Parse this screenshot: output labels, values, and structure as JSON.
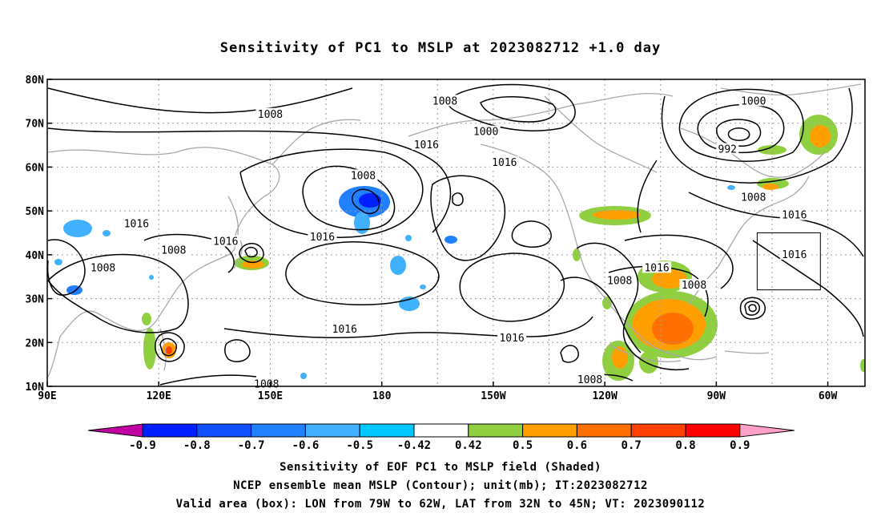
{
  "title": "Sensitivity of PC1 to MSLP at 2023082712 +1.0 day",
  "map": {
    "lat_ticks": [
      "80N",
      "70N",
      "60N",
      "50N",
      "40N",
      "30N",
      "20N",
      "10N"
    ],
    "lon_ticks": [
      "90E",
      "120E",
      "150E",
      "180",
      "150W",
      "120W",
      "90W",
      "60W"
    ],
    "lat_values": [
      80,
      70,
      60,
      50,
      40,
      30,
      20,
      10
    ],
    "lon_values": [
      90,
      120,
      150,
      180,
      210,
      240,
      270,
      300
    ],
    "grid": true,
    "valid_box": {
      "lon": [
        -79,
        -62
      ],
      "lat": [
        32,
        45
      ]
    },
    "contour_labels": [
      {
        "text": "1008",
        "lon": 150,
        "lat": 72
      },
      {
        "text": "1008",
        "lon": 197,
        "lat": 75
      },
      {
        "text": "1000",
        "lon": 208,
        "lat": 68
      },
      {
        "text": "1000",
        "lon": 280,
        "lat": 75
      },
      {
        "text": "992",
        "lon": 273,
        "lat": 64
      },
      {
        "text": "1016",
        "lon": 192,
        "lat": 65
      },
      {
        "text": "1016",
        "lon": 213,
        "lat": 61
      },
      {
        "text": "1008",
        "lon": 175,
        "lat": 58
      },
      {
        "text": "1008",
        "lon": 280,
        "lat": 53
      },
      {
        "text": "1016",
        "lon": 291,
        "lat": 49
      },
      {
        "text": "1016",
        "lon": 114,
        "lat": 47
      },
      {
        "text": "1016",
        "lon": 138,
        "lat": 43
      },
      {
        "text": "1016",
        "lon": 164,
        "lat": 44
      },
      {
        "text": "1008",
        "lon": 124,
        "lat": 41
      },
      {
        "text": "1008",
        "lon": 105,
        "lat": 37
      },
      {
        "text": "1016",
        "lon": 291,
        "lat": 40
      },
      {
        "text": "1016",
        "lon": 254,
        "lat": 37
      },
      {
        "text": "1008",
        "lon": 244,
        "lat": 34
      },
      {
        "text": "1008",
        "lon": 264,
        "lat": 33
      },
      {
        "text": "1016",
        "lon": 170,
        "lat": 23
      },
      {
        "text": "1016",
        "lon": 215,
        "lat": 21
      },
      {
        "text": "1008",
        "lon": 149,
        "lat": 10.5
      },
      {
        "text": "1008",
        "lon": 236,
        "lat": 11.5
      }
    ]
  },
  "colorbar": {
    "labels": [
      "-0.9",
      "-0.8",
      "-0.7",
      "-0.6",
      "-0.5",
      "-0.42",
      "0.42",
      "0.5",
      "0.6",
      "0.7",
      "0.8",
      "0.9"
    ],
    "colors": [
      "#0000a0",
      "#0020ff",
      "#1050ff",
      "#2080ff",
      "#40b0ff",
      "#00c8ff",
      "#ffffff",
      "#90d040",
      "#ffa000",
      "#ff7000",
      "#ff4000",
      "#ff0000"
    ],
    "low_end_color": "#c000a0",
    "high_end_color": "#ffa0c8"
  },
  "captions": {
    "line1": "Sensitivity of EOF PC1 to MSLP field (Shaded)",
    "line2": "NCEP ensemble mean MSLP (Contour); unit(mb); IT:2023082712",
    "line3": "Valid area (box): LON from 79W to 62W, LAT from 32N to 45N; VT: 2023090112"
  }
}
